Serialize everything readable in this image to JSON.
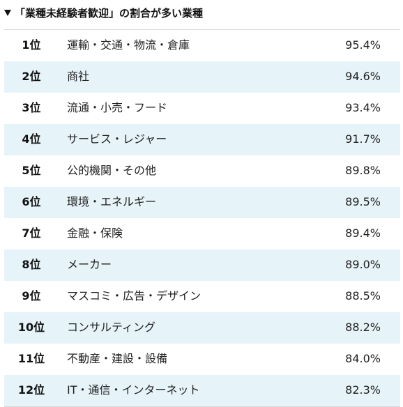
{
  "title": {
    "text": "「業種未経験者歓迎」の割合が多い業種"
  },
  "rows": [
    {
      "rank": "1位",
      "industry": "運輸・交通・物流・倉庫",
      "percent": "95.4%"
    },
    {
      "rank": "2位",
      "industry": "商社",
      "percent": "94.6%"
    },
    {
      "rank": "3位",
      "industry": "流通・小売・フード",
      "percent": "93.4%"
    },
    {
      "rank": "4位",
      "industry": "サービス・レジャー",
      "percent": "91.7%"
    },
    {
      "rank": "5位",
      "industry": "公的機関・その他",
      "percent": "89.8%"
    },
    {
      "rank": "6位",
      "industry": "環境・エネルギー",
      "percent": "89.5%"
    },
    {
      "rank": "7位",
      "industry": "金融・保険",
      "percent": "89.4%"
    },
    {
      "rank": "8位",
      "industry": "メーカー",
      "percent": "89.0%"
    },
    {
      "rank": "9位",
      "industry": "マスコミ・広告・デザイン",
      "percent": "88.5%"
    },
    {
      "rank": "10位",
      "industry": "コンサルティング",
      "percent": "88.2%"
    },
    {
      "rank": "11位",
      "industry": "不動産・建設・設備",
      "percent": "84.0%"
    },
    {
      "rank": "12位",
      "industry": "IT・通信・インターネット",
      "percent": "82.3%"
    }
  ],
  "colors": {
    "alt_row": "#e6f4fa",
    "rule": "#d9d9d9"
  }
}
